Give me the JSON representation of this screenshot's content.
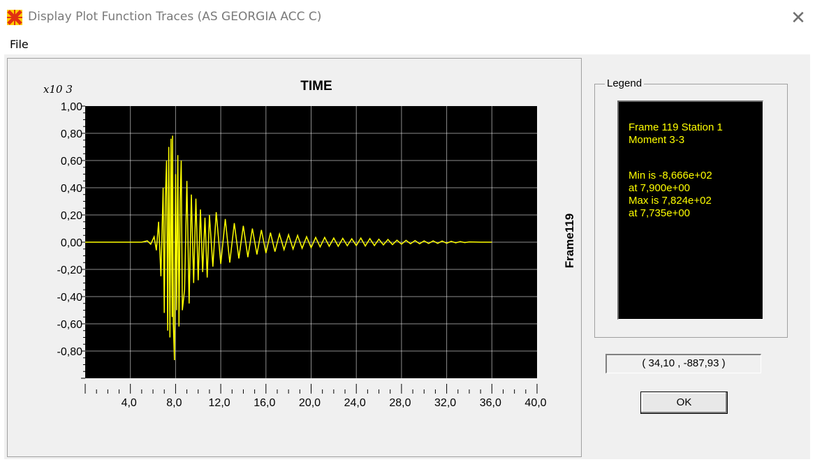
{
  "window": {
    "title": "Display Plot Function Traces  (AS GEORGIA ACC C)",
    "close_icon": "close-icon"
  },
  "menu": {
    "file_label": "File"
  },
  "chart_data": {
    "type": "line",
    "title": "TIME",
    "y_multiplier_label": "x10 3",
    "ylabel": "Frame119",
    "xlabel": "",
    "xlim": [
      0,
      40
    ],
    "ylim": [
      -1000,
      1000
    ],
    "x_ticks": [
      "4,0",
      "8,0",
      "12,0",
      "16,0",
      "20,0",
      "24,0",
      "28,0",
      "32,0",
      "36,0",
      "40,0"
    ],
    "y_ticks": [
      "1,00",
      "0,80",
      "0,60",
      "0,40",
      "0,20",
      "0,00",
      "-0,20",
      "-0,40",
      "-0,60",
      "-0,80"
    ],
    "grid": true,
    "background": "#000000",
    "grid_color": "#ffffff",
    "line_color": "#ffff00",
    "series": [
      {
        "x": [
          0,
          4.0,
          5.0,
          5.5,
          5.8,
          6.1,
          6.3,
          6.5,
          6.7,
          6.9,
          7.0,
          7.1,
          7.2,
          7.3,
          7.4,
          7.5,
          7.6,
          7.7,
          7.735,
          7.8,
          7.9,
          8.0,
          8.1,
          8.2,
          8.3,
          8.4,
          8.5,
          8.6,
          8.8,
          9.0,
          9.2,
          9.4,
          9.6,
          9.8,
          10.0,
          10.2,
          10.4,
          10.6,
          10.8,
          11.0,
          11.3,
          11.6,
          12.0,
          12.4,
          12.8,
          13.2,
          13.6,
          14.0,
          14.4,
          14.8,
          15.2,
          15.6,
          16.0,
          16.4,
          16.8,
          17.2,
          17.6,
          18.0,
          18.4,
          18.8,
          19.2,
          19.6,
          20.0,
          20.4,
          20.8,
          21.2,
          21.6,
          22.0,
          22.4,
          22.8,
          23.2,
          23.6,
          24.0,
          24.4,
          24.8,
          25.2,
          25.6,
          26.0,
          26.4,
          26.8,
          27.2,
          27.6,
          28.0,
          28.4,
          28.8,
          29.2,
          29.6,
          30.0,
          30.4,
          30.8,
          31.2,
          31.6,
          32.0,
          32.4,
          32.8,
          33.2,
          33.6,
          34.0,
          35.0,
          36.0
        ],
        "y": [
          0,
          0,
          0,
          10,
          -15,
          40,
          -60,
          150,
          -250,
          400,
          -520,
          320,
          600,
          -650,
          700,
          -700,
          760,
          -550,
          782.4,
          -600,
          -866.6,
          500,
          -500,
          640,
          -620,
          300,
          600,
          -500,
          -350,
          450,
          -450,
          350,
          -300,
          320,
          -280,
          240,
          -220,
          180,
          -260,
          200,
          -180,
          220,
          -160,
          170,
          -150,
          140,
          -120,
          120,
          -110,
          100,
          -90,
          90,
          -80,
          70,
          -70,
          60,
          -55,
          55,
          -50,
          50,
          -45,
          40,
          -40,
          35,
          -35,
          35,
          -30,
          30,
          -30,
          28,
          -26,
          25,
          -25,
          30,
          -28,
          26,
          -25,
          22,
          -20,
          20,
          -18,
          15,
          -15,
          14,
          -12,
          12,
          -12,
          10,
          -10,
          10,
          -9,
          8,
          -8,
          6,
          -5,
          4,
          -3,
          2,
          0,
          0
        ]
      }
    ],
    "cursor_readout": "( 34,10 , -887,93 )"
  },
  "legend": {
    "caption": "Legend",
    "lines": [
      "Frame 119  Station 1",
      "Moment 3-3",
      "",
      "Min is -8,666e+02",
      "at 7,900e+00",
      "Max is 7,824e+02",
      "at 7,735e+00"
    ]
  },
  "buttons": {
    "ok_label": "OK"
  }
}
